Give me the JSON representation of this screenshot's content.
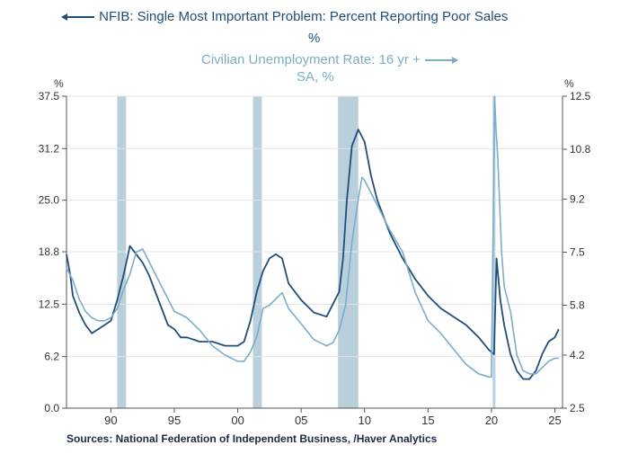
{
  "legend": {
    "series1_line1": "NFIB: Single Most Important Problem: Percent Reporting Poor Sales",
    "series1_line2": "%",
    "series2_line1": "Civilian Unemployment Rate: 16 yr +",
    "series2_line2": "SA, %"
  },
  "source": "Sources:  National Federation of Independent Business, /Haver Analytics",
  "colors": {
    "nfib": "#1f4e7a",
    "unemployment": "#7aaec6",
    "recession": "#b9cfdc",
    "axis": "#555555"
  },
  "chart_data": {
    "type": "line",
    "left_axis": {
      "unit": "%",
      "ylim": [
        0.0,
        37.5
      ],
      "ticks": [
        "0.0",
        "6.2",
        "12.5",
        "18.8",
        "25.0",
        "31.2",
        "37.5"
      ]
    },
    "right_axis": {
      "unit": "%",
      "ylim": [
        2.5,
        12.5
      ],
      "ticks": [
        "2.5",
        "4.2",
        "5.8",
        "7.5",
        "9.2",
        "10.8",
        "12.5"
      ]
    },
    "x_axis": {
      "xlim": [
        1986.5,
        2025.6
      ],
      "tick_values": [
        1990,
        1995,
        2000,
        2005,
        2010,
        2015,
        2020,
        2025
      ],
      "tick_labels": [
        "90",
        "95",
        "00",
        "05",
        "10",
        "15",
        "20",
        "25"
      ]
    },
    "recessions": [
      [
        1990.5,
        1991.2
      ],
      [
        2001.2,
        2001.9
      ],
      [
        2007.9,
        2009.5
      ],
      [
        2020.1,
        2020.3
      ]
    ],
    "series": [
      {
        "name": "NFIB: Single Most Important Problem: Percent Reporting Poor Sales",
        "axis": "left",
        "x": [
          1986.5,
          1986.8,
          1987.0,
          1987.5,
          1988.0,
          1988.5,
          1989.0,
          1989.5,
          1990.0,
          1990.5,
          1991.0,
          1991.5,
          1992.0,
          1992.5,
          1993.0,
          1993.5,
          1994.0,
          1994.5,
          1995.0,
          1995.5,
          1996.0,
          1997.0,
          1998.0,
          1999.0,
          2000.0,
          2000.5,
          2001.0,
          2001.5,
          2002.0,
          2002.5,
          2003.0,
          2003.5,
          2004.0,
          2005.0,
          2006.0,
          2007.0,
          2007.5,
          2008.0,
          2008.3,
          2008.6,
          2009.0,
          2009.5,
          2010.0,
          2010.5,
          2011.0,
          2012.0,
          2013.0,
          2014.0,
          2015.0,
          2016.0,
          2017.0,
          2018.0,
          2019.0,
          2019.8,
          2020.2,
          2020.4,
          2020.7,
          2021.0,
          2021.5,
          2022.0,
          2022.5,
          2023.0,
          2023.5,
          2024.0,
          2024.5,
          2025.0,
          2025.3
        ],
        "values": [
          18.5,
          16.0,
          13.5,
          11.5,
          10.0,
          9.0,
          9.5,
          10.0,
          10.5,
          13.0,
          16.0,
          19.5,
          18.5,
          17.5,
          16.0,
          14.0,
          12.0,
          10.0,
          9.5,
          8.5,
          8.5,
          8.0,
          8.0,
          7.5,
          7.5,
          8.0,
          10.5,
          14.0,
          16.5,
          18.0,
          18.5,
          18.0,
          15.0,
          13.0,
          11.5,
          11.0,
          12.5,
          14.0,
          18.0,
          25.0,
          31.5,
          33.5,
          32.0,
          28.0,
          25.0,
          21.0,
          18.0,
          15.5,
          13.5,
          12.0,
          11.0,
          10.0,
          8.5,
          7.0,
          6.5,
          18.0,
          13.0,
          10.0,
          6.5,
          4.5,
          3.5,
          3.5,
          4.5,
          6.5,
          8.0,
          8.5,
          9.5
        ]
      },
      {
        "name": "Civilian Unemployment Rate: 16 yr +",
        "axis": "right",
        "x": [
          1986.5,
          1987.0,
          1987.5,
          1988.0,
          1988.5,
          1989.0,
          1989.5,
          1990.0,
          1990.5,
          1991.0,
          1991.5,
          1992.0,
          1992.5,
          1993.0,
          1994.0,
          1995.0,
          1996.0,
          1997.0,
          1998.0,
          1999.0,
          2000.0,
          2000.5,
          2001.0,
          2001.5,
          2002.0,
          2002.5,
          2003.0,
          2003.5,
          2004.0,
          2005.0,
          2006.0,
          2007.0,
          2007.5,
          2008.0,
          2008.5,
          2009.0,
          2009.5,
          2009.8,
          2010.0,
          2011.0,
          2012.0,
          2013.0,
          2014.0,
          2015.0,
          2016.0,
          2017.0,
          2018.0,
          2019.0,
          2019.8,
          2020.0,
          2020.25,
          2020.35,
          2020.5,
          2020.8,
          2021.0,
          2021.5,
          2022.0,
          2022.5,
          2023.0,
          2023.5,
          2024.0,
          2024.5,
          2025.0,
          2025.3
        ],
        "values": [
          7.0,
          6.6,
          6.0,
          5.6,
          5.4,
          5.3,
          5.3,
          5.4,
          5.7,
          6.3,
          6.8,
          7.5,
          7.6,
          7.2,
          6.4,
          5.6,
          5.4,
          5.0,
          4.5,
          4.2,
          4.0,
          4.0,
          4.3,
          4.8,
          5.7,
          5.8,
          6.0,
          6.2,
          5.7,
          5.2,
          4.7,
          4.5,
          4.6,
          5.0,
          5.8,
          7.8,
          9.2,
          9.9,
          9.8,
          9.0,
          8.2,
          7.5,
          6.2,
          5.3,
          4.9,
          4.4,
          3.9,
          3.6,
          3.5,
          3.5,
          12.5,
          11.5,
          10.5,
          7.5,
          6.4,
          5.6,
          4.2,
          3.7,
          3.6,
          3.6,
          3.8,
          4.0,
          4.1,
          4.1
        ]
      }
    ]
  }
}
